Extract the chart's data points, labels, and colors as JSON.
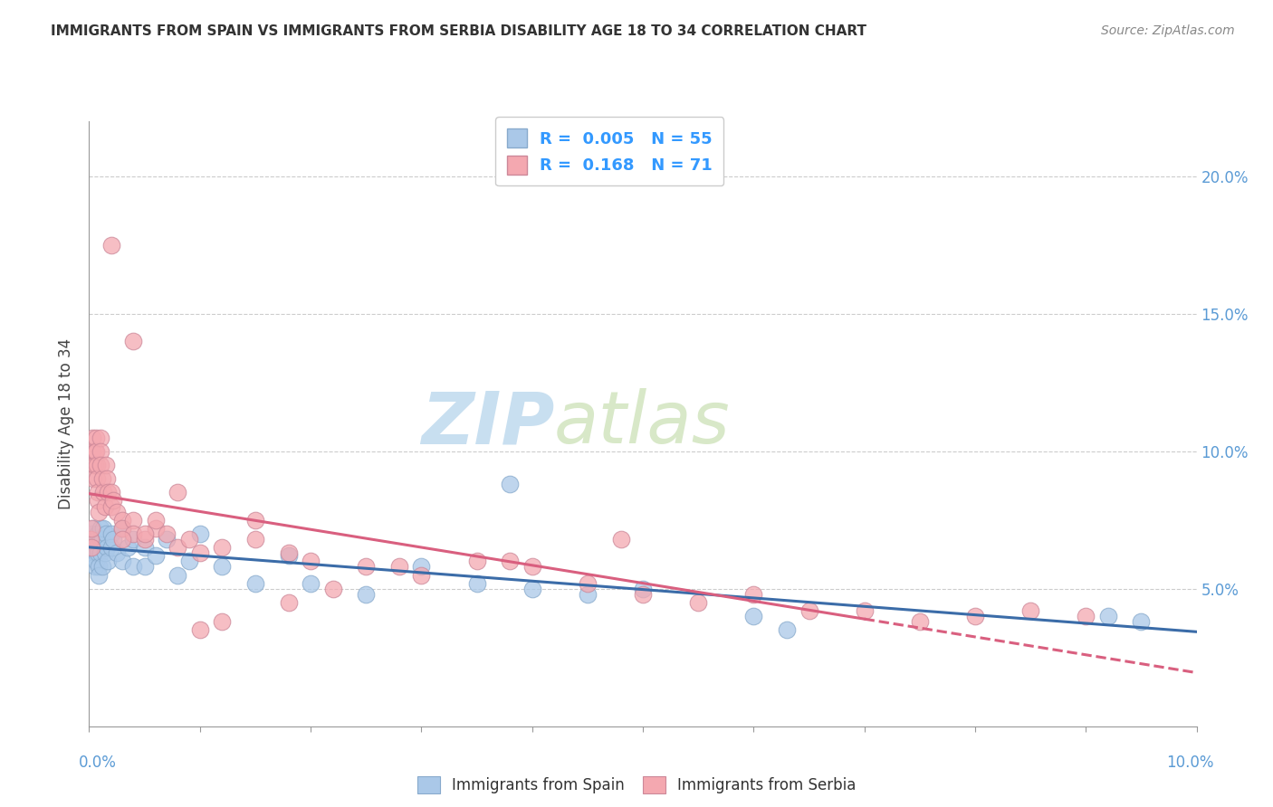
{
  "title": "IMMIGRANTS FROM SPAIN VS IMMIGRANTS FROM SERBIA DISABILITY AGE 18 TO 34 CORRELATION CHART",
  "source": "Source: ZipAtlas.com",
  "ylabel": "Disability Age 18 to 34",
  "legend_spain": "Immigrants from Spain",
  "legend_serbia": "Immigrants from Serbia",
  "R_spain": "0.005",
  "N_spain": "55",
  "R_serbia": "0.168",
  "N_serbia": "71",
  "color_spain": "#aac8e8",
  "color_serbia": "#f4a8b0",
  "color_spain_line": "#3b6ca8",
  "color_serbia_line": "#d95f7f",
  "spain_x": [
    0.0002,
    0.0003,
    0.0003,
    0.0004,
    0.0005,
    0.0005,
    0.0006,
    0.0006,
    0.0007,
    0.0007,
    0.0008,
    0.0008,
    0.0009,
    0.0009,
    0.001,
    0.001,
    0.001,
    0.0012,
    0.0012,
    0.0013,
    0.0014,
    0.0015,
    0.0016,
    0.0017,
    0.002,
    0.002,
    0.0022,
    0.0025,
    0.003,
    0.003,
    0.0035,
    0.004,
    0.004,
    0.005,
    0.005,
    0.006,
    0.007,
    0.008,
    0.009,
    0.01,
    0.012,
    0.015,
    0.018,
    0.02,
    0.025,
    0.03,
    0.035,
    0.04,
    0.045,
    0.05,
    0.038,
    0.06,
    0.063,
    0.092,
    0.095
  ],
  "spain_y": [
    0.068,
    0.065,
    0.07,
    0.072,
    0.062,
    0.058,
    0.063,
    0.06,
    0.068,
    0.065,
    0.07,
    0.063,
    0.058,
    0.055,
    0.072,
    0.068,
    0.063,
    0.068,
    0.058,
    0.072,
    0.063,
    0.07,
    0.065,
    0.06,
    0.07,
    0.065,
    0.068,
    0.063,
    0.072,
    0.06,
    0.065,
    0.068,
    0.058,
    0.065,
    0.058,
    0.062,
    0.068,
    0.055,
    0.06,
    0.07,
    0.058,
    0.052,
    0.062,
    0.052,
    0.048,
    0.058,
    0.052,
    0.05,
    0.048,
    0.05,
    0.088,
    0.04,
    0.035,
    0.04,
    0.038
  ],
  "serbia_x": [
    0.0001,
    0.0002,
    0.0002,
    0.0003,
    0.0003,
    0.0004,
    0.0004,
    0.0005,
    0.0005,
    0.0006,
    0.0006,
    0.0007,
    0.0007,
    0.0008,
    0.0008,
    0.0009,
    0.001,
    0.001,
    0.001,
    0.0012,
    0.0013,
    0.0014,
    0.0015,
    0.0016,
    0.0017,
    0.002,
    0.002,
    0.0022,
    0.0025,
    0.003,
    0.003,
    0.004,
    0.004,
    0.005,
    0.006,
    0.007,
    0.008,
    0.009,
    0.01,
    0.012,
    0.015,
    0.018,
    0.02,
    0.025,
    0.03,
    0.035,
    0.04,
    0.045,
    0.05,
    0.055,
    0.06,
    0.065,
    0.07,
    0.075,
    0.08,
    0.085,
    0.09,
    0.048,
    0.038,
    0.028,
    0.022,
    0.018,
    0.015,
    0.012,
    0.01,
    0.008,
    0.006,
    0.005,
    0.004,
    0.003,
    0.002
  ],
  "serbia_y": [
    0.068,
    0.072,
    0.065,
    0.105,
    0.1,
    0.095,
    0.09,
    0.1,
    0.095,
    0.105,
    0.1,
    0.095,
    0.09,
    0.085,
    0.082,
    0.078,
    0.105,
    0.1,
    0.095,
    0.09,
    0.085,
    0.08,
    0.095,
    0.09,
    0.085,
    0.085,
    0.08,
    0.082,
    0.078,
    0.075,
    0.072,
    0.075,
    0.07,
    0.068,
    0.072,
    0.07,
    0.065,
    0.068,
    0.063,
    0.065,
    0.068,
    0.063,
    0.06,
    0.058,
    0.055,
    0.06,
    0.058,
    0.052,
    0.048,
    0.045,
    0.048,
    0.042,
    0.042,
    0.038,
    0.04,
    0.042,
    0.04,
    0.068,
    0.06,
    0.058,
    0.05,
    0.045,
    0.075,
    0.038,
    0.035,
    0.085,
    0.075,
    0.07,
    0.14,
    0.068,
    0.175
  ],
  "xlim": [
    0.0,
    0.1
  ],
  "ylim": [
    0.0,
    0.22
  ],
  "ytick_positions": [
    0.05,
    0.1,
    0.15,
    0.2
  ],
  "background_color": "#ffffff",
  "grid_color": "#cccccc",
  "watermark_zip": "ZIP",
  "watermark_atlas": "atlas",
  "watermark_color": "#ddeef8"
}
